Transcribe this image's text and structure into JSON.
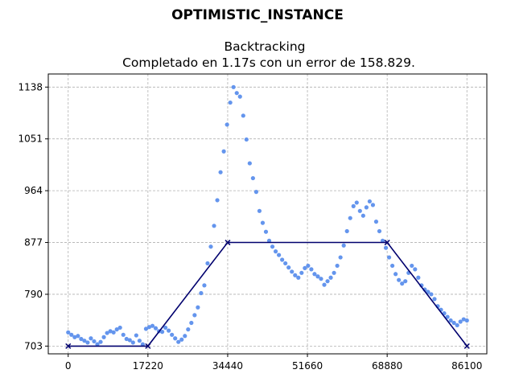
{
  "chart_data": {
    "type": "scatter",
    "suptitle": "OPTIMISTIC_INSTANCE",
    "title_line1": "Backtracking",
    "title_line2": "Completado en 1.17s con un error de 158.829.",
    "xlabel": "",
    "ylabel": "",
    "xlim": [
      -4300,
      90400
    ],
    "ylim": [
      690,
      1160
    ],
    "xticks": [
      "0",
      "17220",
      "34440",
      "51660",
      "68880",
      "86100"
    ],
    "yticks": [
      "703",
      "790",
      "877",
      "964",
      "1051",
      "1138"
    ],
    "xtick_values": [
      0,
      17220,
      34440,
      51660,
      68880,
      86100
    ],
    "ytick_values": [
      703,
      790,
      877,
      964,
      1051,
      1138
    ],
    "grid": true,
    "colors": {
      "points": "#6495ed",
      "fit_line": "#00006e"
    },
    "series": [
      {
        "kind": "scatter",
        "x": [
          0,
          700,
          1400,
          2100,
          2800,
          3500,
          4200,
          4900,
          5600,
          6300,
          7000,
          7700,
          8400,
          9100,
          9800,
          10500,
          11200,
          11900,
          12600,
          13300,
          14000,
          14700,
          15400,
          16100,
          16800,
          17500,
          18200,
          18900,
          19600,
          20300,
          21000,
          21700,
          22400,
          23100,
          23800,
          24500,
          25200,
          25900,
          26600,
          27300,
          28000,
          28700,
          29400,
          30100,
          30800,
          31500,
          32200,
          32900,
          33600,
          34300,
          35000,
          35700,
          36400,
          37100,
          37800,
          38500,
          39200,
          39900,
          40600,
          41300,
          42000,
          42700,
          43400,
          44100,
          44800,
          45500,
          46200,
          46900,
          47600,
          48300,
          49000,
          49700,
          50400,
          51100,
          51800,
          52500,
          53200,
          53900,
          54600,
          55300,
          56000,
          56700,
          57400,
          58100,
          58800,
          59500,
          60200,
          60900,
          61600,
          62300,
          63000,
          63700,
          64400,
          65100,
          65800,
          66500,
          67200,
          67900,
          68600,
          69300,
          70000,
          70700,
          71400,
          72100,
          72800,
          73500,
          74200,
          74900,
          75600,
          76300,
          77000,
          77700,
          78400,
          79100,
          79800,
          80500,
          81200,
          81900,
          82600,
          83300,
          84000,
          84700,
          85400,
          86100
        ],
        "y": [
          726,
          722,
          718,
          720,
          715,
          712,
          709,
          716,
          711,
          706,
          710,
          718,
          725,
          728,
          726,
          731,
          734,
          722,
          715,
          713,
          709,
          721,
          712,
          706,
          732,
          735,
          737,
          733,
          728,
          727,
          734,
          729,
          722,
          716,
          710,
          714,
          720,
          731,
          742,
          755,
          768,
          792,
          805,
          842,
          870,
          905,
          948,
          995,
          1030,
          1075,
          1112,
          1138,
          1128,
          1122,
          1090,
          1050,
          1010,
          985,
          962,
          930,
          910,
          895,
          880,
          870,
          862,
          856,
          848,
          842,
          835,
          828,
          822,
          818,
          826,
          834,
          838,
          832,
          824,
          820,
          816,
          806,
          812,
          818,
          826,
          838,
          852,
          872,
          896,
          918,
          938,
          944,
          930,
          922,
          936,
          946,
          940,
          912,
          896,
          880,
          868,
          852,
          838,
          824,
          814,
          808,
          812,
          826,
          838,
          832,
          818,
          805,
          798,
          794,
          790,
          782,
          770,
          764,
          758,
          752,
          746,
          742,
          738,
          744,
          748,
          746
        ]
      },
      {
        "kind": "line",
        "x": [
          0,
          17220,
          34440,
          68880,
          86100
        ],
        "y": [
          703,
          703,
          877,
          877,
          703
        ]
      }
    ]
  }
}
